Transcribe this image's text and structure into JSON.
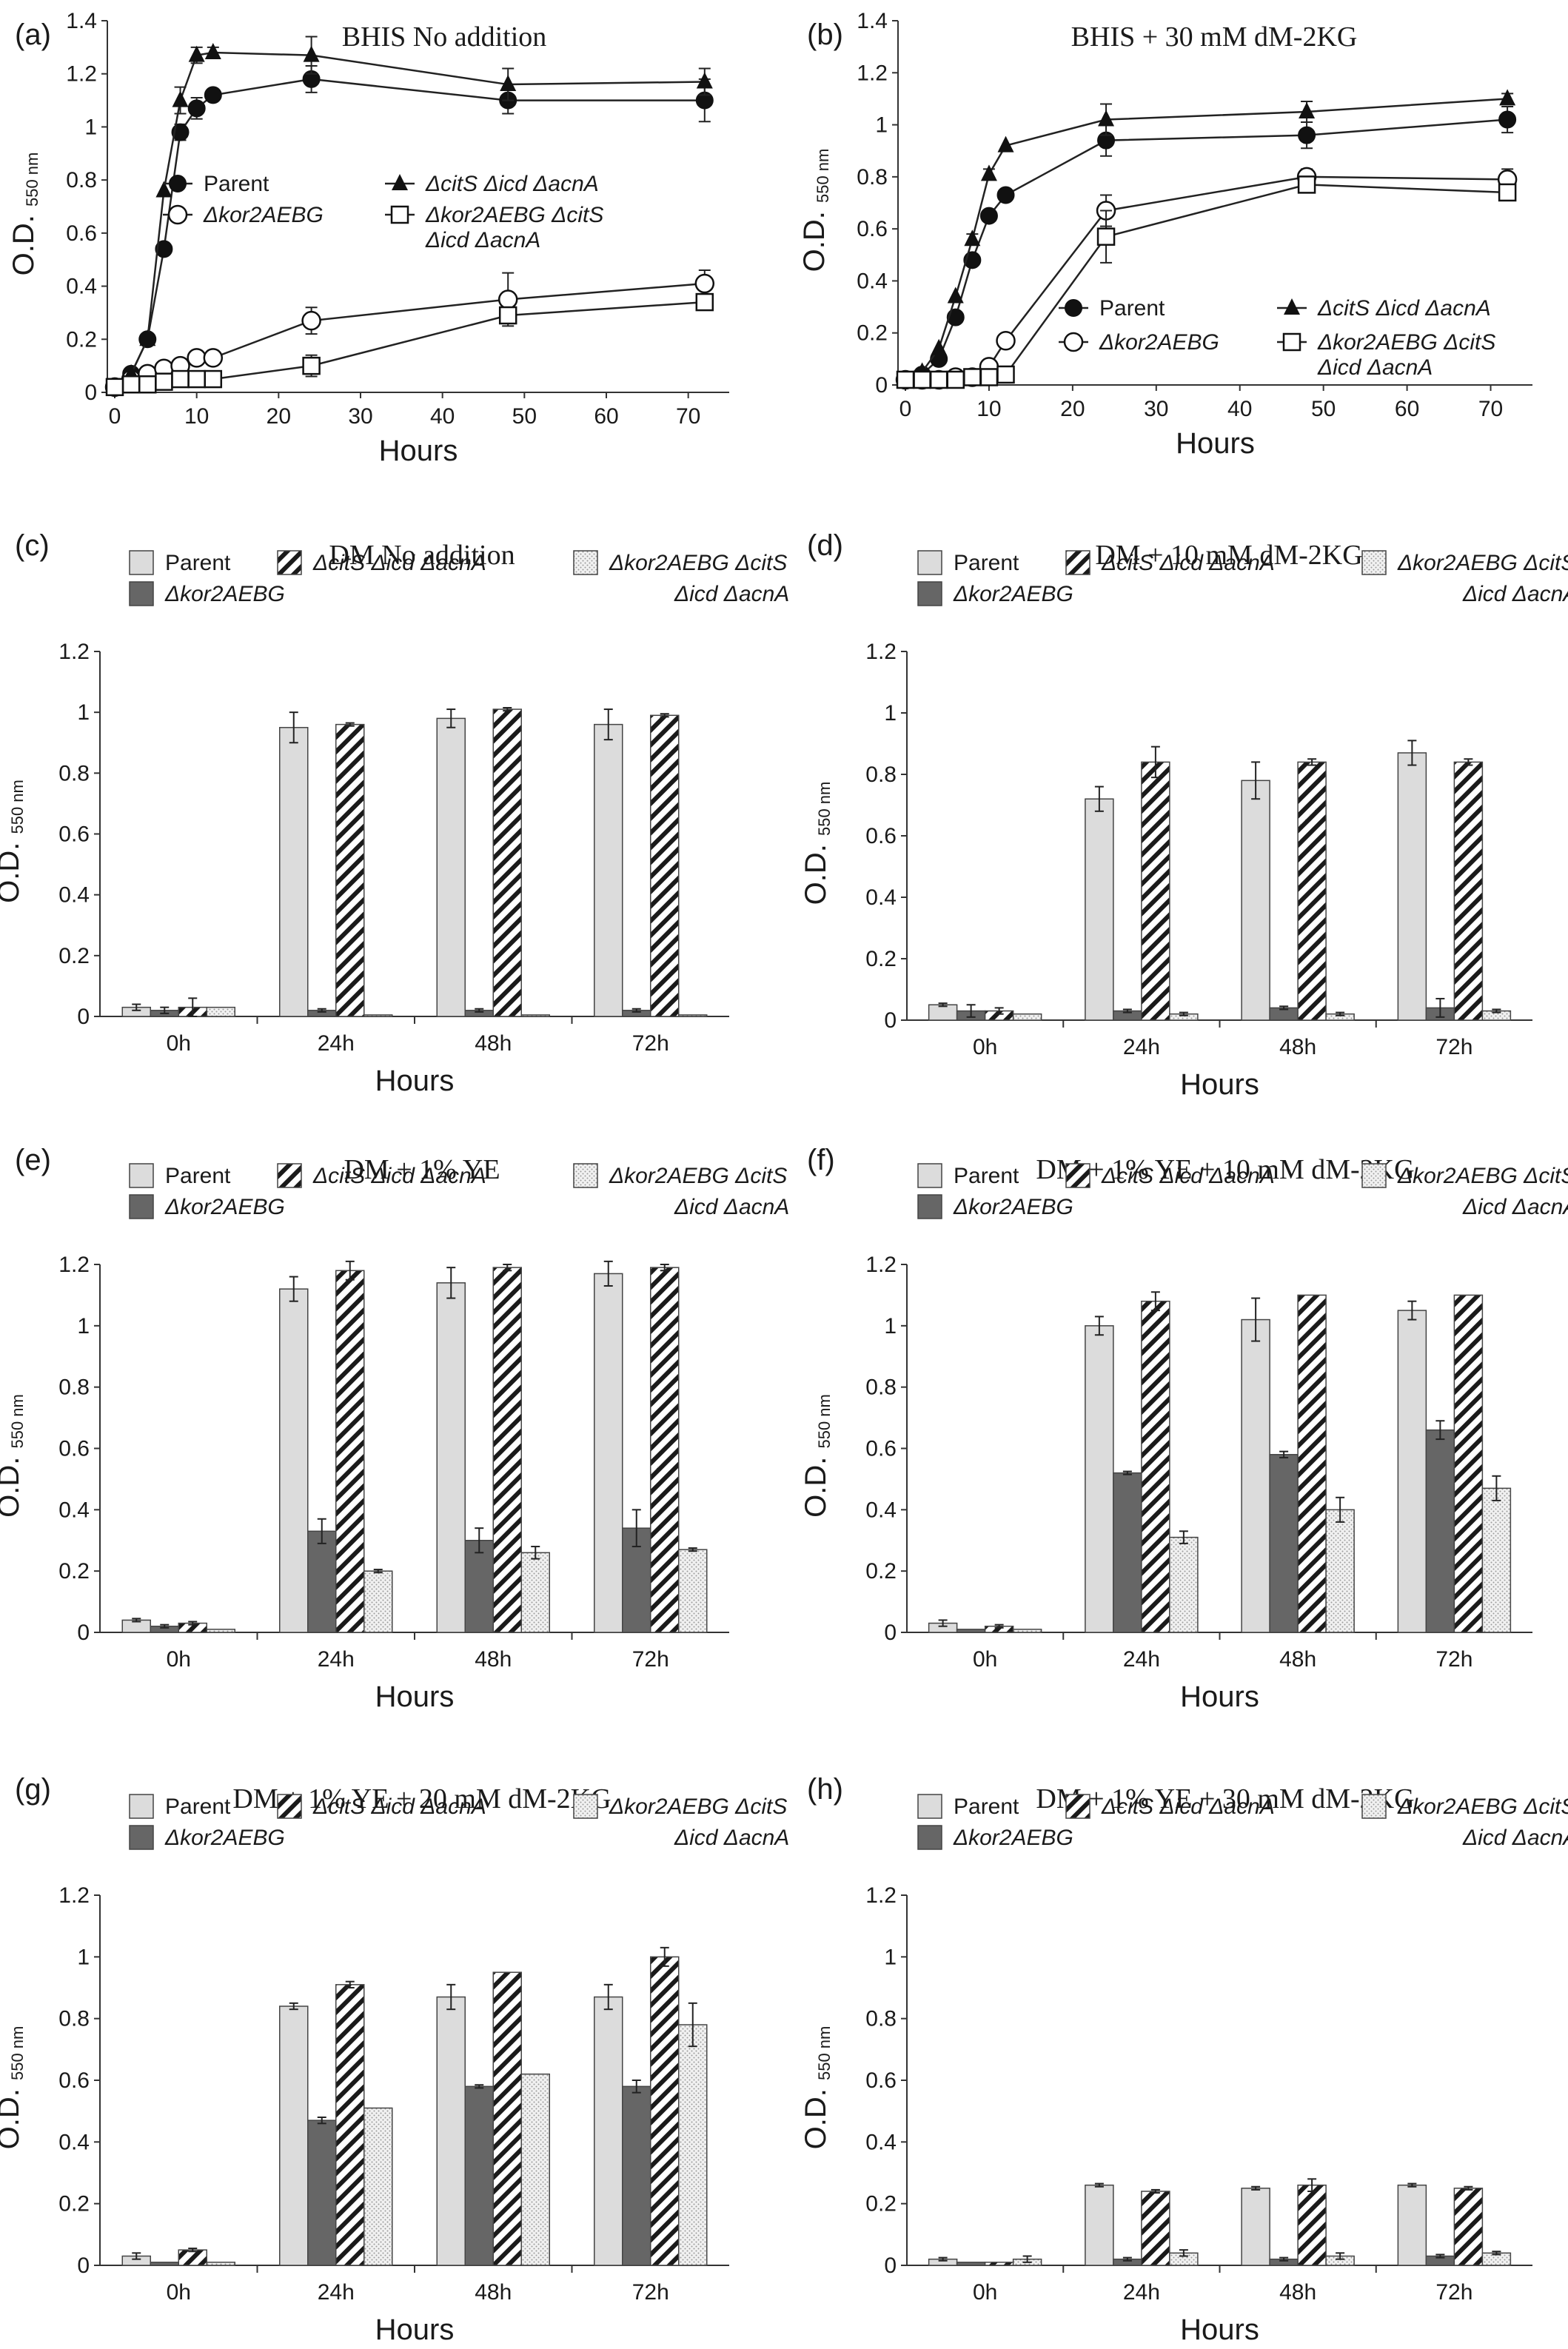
{
  "figure": {
    "panels": [
      {
        "label": "(a)",
        "title": "BHIS  No addition"
      },
      {
        "label": "(b)",
        "title": "BHIS + 30 mM dM-2KG"
      },
      {
        "label": "(c)",
        "title": "DM No addition"
      },
      {
        "label": "(d)",
        "title": "DM + 10 mM dM-2KG"
      },
      {
        "label": "(e)",
        "title": "DM + 1% YE"
      },
      {
        "label": "(f)",
        "title": "DM + 1% YE + 10 mM dM-2KG"
      },
      {
        "label": "(g)",
        "title": "DM + 1% YE + 20 mM dM-2KG"
      },
      {
        "label": "(h)",
        "title": "DM + 1% YE + 30 mM dM-2KG"
      }
    ],
    "ylabel_main": "O.D.",
    "ylabel_sub": "550 nm",
    "xlabel": "Hours",
    "legend": {
      "parent": "Parent",
      "kor": "Δkor2AEBG",
      "cit": "ΔcitS Δicd ΔacnA",
      "combo_line1": "Δkor2AEBG ΔcitS",
      "combo_line2": "Δicd ΔacnA"
    }
  },
  "chart_data": [
    {
      "type": "line",
      "title": "BHIS  No addition",
      "xlabel": "Hours",
      "ylabel": "O.D. 550 nm",
      "xlim": [
        0,
        75
      ],
      "ylim": [
        0,
        1.4
      ],
      "xticks": [
        0,
        10,
        20,
        30,
        40,
        50,
        60,
        70
      ],
      "yticks": [
        0,
        0.2,
        0.4,
        0.6,
        0.8,
        1,
        1.2,
        1.4
      ],
      "legend": "inside-right",
      "series": [
        {
          "name": "Parent",
          "marker": "filled-circle",
          "x": [
            0,
            2,
            4,
            6,
            8,
            10,
            12,
            24,
            48,
            72
          ],
          "y": [
            0.02,
            0.07,
            0.2,
            0.54,
            0.98,
            1.07,
            1.12,
            1.18,
            1.1,
            1.1
          ],
          "err": [
            0,
            0,
            0,
            0,
            0.03,
            0.04,
            0.02,
            0.05,
            0.05,
            0.08
          ]
        },
        {
          "name": "Δkor2AEBG",
          "marker": "open-circle",
          "x": [
            0,
            2,
            4,
            6,
            8,
            10,
            12,
            24,
            48,
            72
          ],
          "y": [
            0.02,
            0.05,
            0.07,
            0.09,
            0.1,
            0.13,
            0.13,
            0.27,
            0.35,
            0.41
          ],
          "err": [
            0,
            0,
            0,
            0,
            0,
            0.02,
            0.01,
            0.05,
            0.1,
            0.05
          ]
        },
        {
          "name": "ΔcitS Δicd ΔacnA",
          "marker": "filled-triangle",
          "x": [
            0,
            2,
            4,
            6,
            8,
            10,
            12,
            24,
            48,
            72
          ],
          "y": [
            0.02,
            0.07,
            0.2,
            0.76,
            1.1,
            1.27,
            1.28,
            1.27,
            1.16,
            1.17
          ],
          "err": [
            0,
            0,
            0,
            0,
            0.05,
            0.03,
            0.02,
            0.07,
            0.06,
            0.05
          ]
        },
        {
          "name": "Δkor2AEBG ΔcitS Δicd ΔacnA",
          "marker": "open-square",
          "x": [
            0,
            2,
            4,
            6,
            8,
            10,
            12,
            24,
            48,
            72
          ],
          "y": [
            0.02,
            0.03,
            0.03,
            0.04,
            0.05,
            0.05,
            0.05,
            0.1,
            0.29,
            0.34
          ],
          "err": [
            0,
            0,
            0,
            0,
            0,
            0,
            0,
            0.04,
            0.03,
            0.03
          ]
        }
      ]
    },
    {
      "type": "line",
      "title": "BHIS + 30 mM dM-2KG",
      "xlabel": "Hours",
      "ylabel": "O.D. 550 nm",
      "xlim": [
        0,
        75
      ],
      "ylim": [
        0,
        1.4
      ],
      "xticks": [
        0,
        10,
        20,
        30,
        40,
        50,
        60,
        70
      ],
      "yticks": [
        0,
        0.2,
        0.4,
        0.6,
        0.8,
        1,
        1.2,
        1.4
      ],
      "legend": "bottom-right",
      "series": [
        {
          "name": "Parent",
          "marker": "filled-circle",
          "x": [
            0,
            2,
            4,
            6,
            8,
            10,
            12,
            24,
            48,
            72
          ],
          "y": [
            0.02,
            0.04,
            0.1,
            0.26,
            0.48,
            0.65,
            0.73,
            0.94,
            0.96,
            1.02
          ],
          "err": [
            0,
            0,
            0,
            0,
            0.02,
            0.02,
            0.02,
            0.06,
            0.05,
            0.05
          ]
        },
        {
          "name": "Δkor2AEBG",
          "marker": "open-circle",
          "x": [
            0,
            2,
            4,
            6,
            8,
            10,
            12,
            24,
            48,
            72
          ],
          "y": [
            0.02,
            0.02,
            0.02,
            0.03,
            0.03,
            0.07,
            0.17,
            0.67,
            0.8,
            0.79
          ],
          "err": [
            0,
            0,
            0,
            0,
            0,
            0,
            0.01,
            0.06,
            0.03,
            0.04
          ]
        },
        {
          "name": "ΔcitS Δicd ΔacnA",
          "marker": "filled-triangle",
          "x": [
            0,
            2,
            4,
            6,
            8,
            10,
            12,
            24,
            48,
            72
          ],
          "y": [
            0.02,
            0.05,
            0.14,
            0.34,
            0.56,
            0.81,
            0.92,
            1.02,
            1.05,
            1.1
          ],
          "err": [
            0,
            0,
            0,
            0,
            0.02,
            0.02,
            0.01,
            0.06,
            0.04,
            0.02
          ]
        },
        {
          "name": "Δkor2AEBG ΔcitS Δicd ΔacnA",
          "marker": "open-square",
          "x": [
            0,
            2,
            4,
            6,
            8,
            10,
            12,
            24,
            48,
            72
          ],
          "y": [
            0.02,
            0.02,
            0.02,
            0.02,
            0.03,
            0.03,
            0.04,
            0.57,
            0.77,
            0.74
          ],
          "err": [
            0,
            0,
            0,
            0,
            0,
            0,
            0,
            0.1,
            0.03,
            0.03
          ]
        }
      ]
    },
    {
      "type": "bar",
      "title": "DM No addition",
      "xlabel": "Hours",
      "ylabel": "O.D. 550 nm",
      "categories": [
        "0h",
        "24h",
        "48h",
        "72h"
      ],
      "ylim": [
        0,
        1.2
      ],
      "yticks": [
        0,
        0.2,
        0.4,
        0.6,
        0.8,
        1,
        1.2
      ],
      "legend": "top",
      "series": [
        {
          "name": "Parent",
          "values": [
            0.03,
            0.95,
            0.98,
            0.96
          ],
          "err": [
            0.01,
            0.05,
            0.03,
            0.05
          ]
        },
        {
          "name": "Δkor2AEBG",
          "values": [
            0.02,
            0.02,
            0.02,
            0.02
          ],
          "err": [
            0.01,
            0.005,
            0.005,
            0.005
          ]
        },
        {
          "name": "ΔcitS Δicd ΔacnA",
          "values": [
            0.03,
            0.96,
            1.01,
            0.99
          ],
          "err": [
            0.03,
            0.005,
            0.005,
            0.005
          ]
        },
        {
          "name": "Δkor2AEBG ΔcitS Δicd ΔacnA",
          "values": [
            0.03,
            0.005,
            0.005,
            0.005
          ],
          "err": [
            0,
            0,
            0,
            0
          ]
        }
      ]
    },
    {
      "type": "bar",
      "title": "DM + 10 mM dM-2KG",
      "xlabel": "Hours",
      "ylabel": "O.D. 550 nm",
      "categories": [
        "0h",
        "24h",
        "48h",
        "72h"
      ],
      "ylim": [
        0,
        1.2
      ],
      "yticks": [
        0,
        0.2,
        0.4,
        0.6,
        0.8,
        1,
        1.2
      ],
      "legend": "top",
      "series": [
        {
          "name": "Parent",
          "values": [
            0.05,
            0.72,
            0.78,
            0.87
          ],
          "err": [
            0.005,
            0.04,
            0.06,
            0.04
          ]
        },
        {
          "name": "Δkor2AEBG",
          "values": [
            0.03,
            0.03,
            0.04,
            0.04
          ],
          "err": [
            0.02,
            0.005,
            0.005,
            0.03
          ]
        },
        {
          "name": "ΔcitS Δicd ΔacnA",
          "values": [
            0.03,
            0.84,
            0.84,
            0.84
          ],
          "err": [
            0.01,
            0.05,
            0.01,
            0.01
          ]
        },
        {
          "name": "Δkor2AEBG ΔcitS Δicd ΔacnA",
          "values": [
            0.02,
            0.02,
            0.02,
            0.03
          ],
          "err": [
            0,
            0.005,
            0.005,
            0.005
          ]
        }
      ]
    },
    {
      "type": "bar",
      "title": "DM + 1% YE",
      "xlabel": "Hours",
      "ylabel": "O.D. 550 nm",
      "categories": [
        "0h",
        "24h",
        "48h",
        "72h"
      ],
      "ylim": [
        0,
        1.2
      ],
      "yticks": [
        0,
        0.2,
        0.4,
        0.6,
        0.8,
        1,
        1.2
      ],
      "legend": "top",
      "series": [
        {
          "name": "Parent",
          "values": [
            0.04,
            1.12,
            1.14,
            1.17
          ],
          "err": [
            0.005,
            0.04,
            0.05,
            0.04
          ]
        },
        {
          "name": "Δkor2AEBG",
          "values": [
            0.02,
            0.33,
            0.3,
            0.34
          ],
          "err": [
            0.005,
            0.04,
            0.04,
            0.06
          ]
        },
        {
          "name": "ΔcitS Δicd ΔacnA",
          "values": [
            0.03,
            1.18,
            1.19,
            1.19
          ],
          "err": [
            0.005,
            0.03,
            0.01,
            0.01
          ]
        },
        {
          "name": "Δkor2AEBG ΔcitS Δicd ΔacnA",
          "values": [
            0.01,
            0.2,
            0.26,
            0.27
          ],
          "err": [
            0,
            0.005,
            0.02,
            0.005
          ]
        }
      ]
    },
    {
      "type": "bar",
      "title": "DM + 1% YE + 10 mM dM-2KG",
      "xlabel": "Hours",
      "ylabel": "O.D. 550 nm",
      "categories": [
        "0h",
        "24h",
        "48h",
        "72h"
      ],
      "ylim": [
        0,
        1.2
      ],
      "yticks": [
        0,
        0.2,
        0.4,
        0.6,
        0.8,
        1,
        1.2
      ],
      "legend": "top",
      "series": [
        {
          "name": "Parent",
          "values": [
            0.03,
            1.0,
            1.02,
            1.05
          ],
          "err": [
            0.01,
            0.03,
            0.07,
            0.03
          ]
        },
        {
          "name": "Δkor2AEBG",
          "values": [
            0.01,
            0.52,
            0.58,
            0.66
          ],
          "err": [
            0,
            0.005,
            0.01,
            0.03
          ]
        },
        {
          "name": "ΔcitS Δicd ΔacnA",
          "values": [
            0.02,
            1.08,
            1.1,
            1.1
          ],
          "err": [
            0.005,
            0.03,
            0,
            0
          ]
        },
        {
          "name": "Δkor2AEBG ΔcitS Δicd ΔacnA",
          "values": [
            0.01,
            0.31,
            0.4,
            0.47
          ],
          "err": [
            0,
            0.02,
            0.04,
            0.04
          ]
        }
      ]
    },
    {
      "type": "bar",
      "title": "DM + 1% YE + 20 mM dM-2KG",
      "xlabel": "Hours",
      "ylabel": "O.D. 550 nm",
      "categories": [
        "0h",
        "24h",
        "48h",
        "72h"
      ],
      "ylim": [
        0,
        1.2
      ],
      "yticks": [
        0,
        0.2,
        0.4,
        0.6,
        0.8,
        1,
        1.2
      ],
      "legend": "top",
      "series": [
        {
          "name": "Parent",
          "values": [
            0.03,
            0.84,
            0.87,
            0.87
          ],
          "err": [
            0.01,
            0.01,
            0.04,
            0.04
          ]
        },
        {
          "name": "Δkor2AEBG",
          "values": [
            0.01,
            0.47,
            0.58,
            0.58
          ],
          "err": [
            0,
            0.01,
            0.005,
            0.02
          ]
        },
        {
          "name": "ΔcitS Δicd ΔacnA",
          "values": [
            0.05,
            0.91,
            0.95,
            1.0
          ],
          "err": [
            0.005,
            0.01,
            0,
            0.03
          ]
        },
        {
          "name": "Δkor2AEBG ΔcitS Δicd ΔacnA",
          "values": [
            0.01,
            0.51,
            0.62,
            0.78
          ],
          "err": [
            0,
            0,
            0,
            0.07
          ]
        }
      ]
    },
    {
      "type": "bar",
      "title": "DM + 1% YE + 30 mM dM-2KG",
      "xlabel": "Hours",
      "ylabel": "O.D. 550 nm",
      "categories": [
        "0h",
        "24h",
        "48h",
        "72h"
      ],
      "ylim": [
        0,
        1.2
      ],
      "yticks": [
        0,
        0.2,
        0.4,
        0.6,
        0.8,
        1,
        1.2
      ],
      "legend": "top",
      "series": [
        {
          "name": "Parent",
          "values": [
            0.02,
            0.26,
            0.25,
            0.26
          ],
          "err": [
            0.005,
            0.005,
            0.005,
            0.005
          ]
        },
        {
          "name": "Δkor2AEBG",
          "values": [
            0.01,
            0.02,
            0.02,
            0.03
          ],
          "err": [
            0,
            0.005,
            0.005,
            0.005
          ]
        },
        {
          "name": "ΔcitS Δicd ΔacnA",
          "values": [
            0.01,
            0.24,
            0.26,
            0.25
          ],
          "err": [
            0,
            0.005,
            0.02,
            0.005
          ]
        },
        {
          "name": "Δkor2AEBG ΔcitS Δicd ΔacnA",
          "values": [
            0.02,
            0.04,
            0.03,
            0.04
          ],
          "err": [
            0.01,
            0.01,
            0.01,
            0.005
          ]
        }
      ]
    }
  ]
}
